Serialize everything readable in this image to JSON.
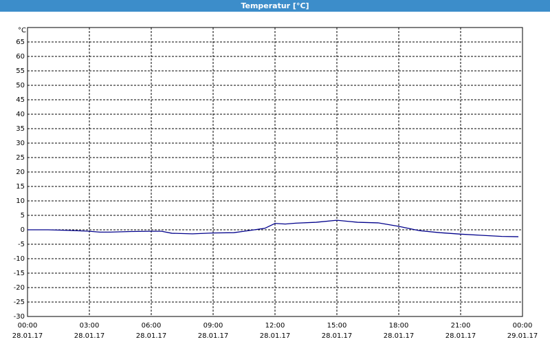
{
  "header": {
    "title": "Temperatur [°C]"
  },
  "chart_data": {
    "type": "line",
    "y_unit": "°C",
    "x": [
      0,
      1,
      2,
      3,
      3.5,
      4,
      5,
      6,
      6.5,
      7,
      8,
      9,
      10,
      10.5,
      11,
      11.5,
      12,
      12.5,
      13,
      14,
      15,
      16,
      17,
      18,
      19,
      20,
      21,
      22,
      23,
      23.8
    ],
    "series": [
      {
        "name": "Temperatur",
        "color": "#00008b",
        "values": [
          0,
          0,
          -0.2,
          -0.5,
          -0.8,
          -0.8,
          -0.6,
          -0.5,
          -0.5,
          -1.2,
          -1.4,
          -1.1,
          -1.0,
          -0.5,
          0,
          0.5,
          2.2,
          2.0,
          2.3,
          2.6,
          3.3,
          2.6,
          2.4,
          1.2,
          -0.3,
          -1.0,
          -1.5,
          -1.9,
          -2.3,
          -2.4
        ]
      }
    ],
    "xlim": [
      0,
      24
    ],
    "ylim": [
      -30,
      70
    ],
    "xticks": [
      {
        "value": 0,
        "label": "00:00 28.01.17"
      },
      {
        "value": 3,
        "label": "03:00 28.01.17"
      },
      {
        "value": 6,
        "label": "06:00 28.01.17"
      },
      {
        "value": 9,
        "label": "09:00 28.01.17"
      },
      {
        "value": 12,
        "label": "12:00 28.01.17"
      },
      {
        "value": 15,
        "label": "15:00 28.01.17"
      },
      {
        "value": 18,
        "label": "18:00 28.01.17"
      },
      {
        "value": 21,
        "label": "21:00 28.01.17"
      },
      {
        "value": 24,
        "label": "00:00 29.01.17"
      }
    ],
    "yticks": [
      -30,
      -25,
      -20,
      -15,
      -10,
      -5,
      0,
      5,
      10,
      15,
      20,
      25,
      30,
      35,
      40,
      45,
      50,
      55,
      60,
      65
    ],
    "grid": true
  }
}
